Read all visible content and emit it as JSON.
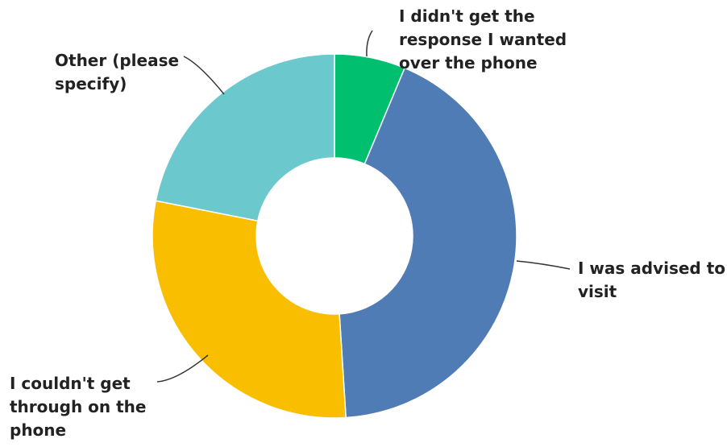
{
  "chart_data": {
    "type": "pie",
    "donut": true,
    "title": "",
    "legend": "none",
    "slices": [
      {
        "label": "I didn't get the response I wanted over the phone",
        "label_lines": [
          "I didn't get the",
          "response I wanted",
          "over the phone"
        ],
        "value": 6.3,
        "color": "#00BF6F"
      },
      {
        "label": "I was advised to visit",
        "label_lines": [
          "I was advised to",
          "visit"
        ],
        "value": 42.7,
        "color": "#507CB6"
      },
      {
        "label": "I couldn't get through on the phone",
        "label_lines": [
          "I couldn't get",
          "through on the",
          "phone"
        ],
        "value": 29.1,
        "color": "#F9BE00"
      },
      {
        "label": "Other (please specify)",
        "label_lines": [
          "Other (please",
          "specify)"
        ],
        "value": 21.9,
        "color": "#6BC8CD"
      }
    ]
  }
}
